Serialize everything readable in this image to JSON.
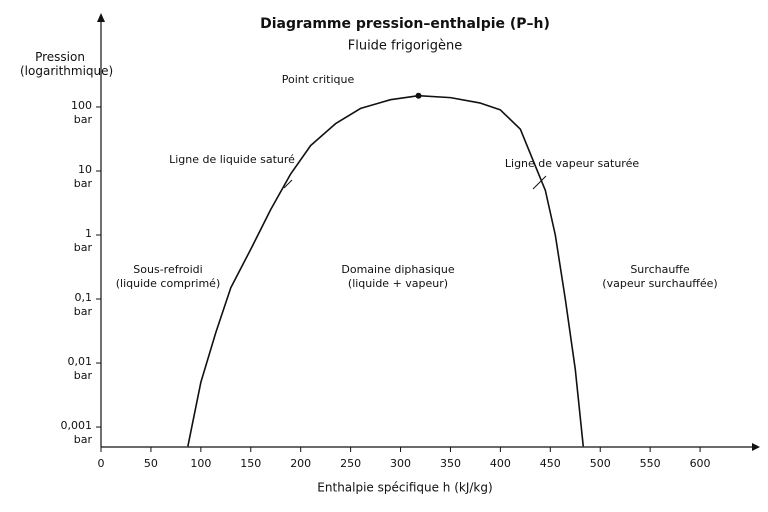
{
  "chart_data": {
    "type": "line",
    "title": "Diagramme pression–enthalpie (P–h)",
    "subtitle": "Fluide frigorigène",
    "x_label": "Enthalpie spécifique h (kJ/kg)",
    "y_label": "Pression\n(logarithmique)",
    "y_scale": "log",
    "xlim": [
      0,
      650
    ],
    "ylim": [
      0.0005,
      2500
    ],
    "xticks": [
      0,
      50,
      100,
      150,
      200,
      250,
      300,
      350,
      400,
      450,
      500,
      550,
      600
    ],
    "yticks": [
      {
        "value": 0.001,
        "label": "0,001\nbar"
      },
      {
        "value": 0.01,
        "label": "0,01\nbar"
      },
      {
        "value": 0.1,
        "label": "0,1\nbar"
      },
      {
        "value": 1,
        "label": "1\nbar"
      },
      {
        "value": 10,
        "label": "10\nbar"
      },
      {
        "value": 100,
        "label": "100\nbar"
      }
    ],
    "x": [
      87,
      100,
      115,
      130,
      150,
      170,
      190,
      210,
      235,
      260,
      290,
      318,
      350,
      380,
      400,
      420,
      435,
      445,
      455,
      465,
      475,
      483
    ],
    "series": [
      {
        "color": "#111111",
        "values": [
          0.0005,
          0.005,
          0.03,
          0.15,
          0.6,
          2.5,
          9,
          25,
          55,
          95,
          130,
          150,
          140,
          115,
          90,
          45,
          12,
          5,
          1,
          0.1,
          0.008,
          0.0005
        ]
      }
    ],
    "critical_index": 11,
    "annotations": [
      "Point critique",
      "Ligne de liquide saturé",
      "Ligne de vapeur saturée",
      "Sous-refroidi\n(liquide comprimé)",
      "Domaine diphasique\n(liquide + vapeur)",
      "Surchauffe\n(vapeur surchauffée)"
    ]
  }
}
